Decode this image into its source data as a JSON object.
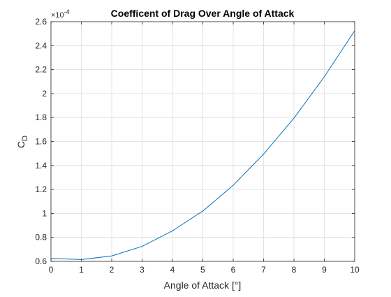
{
  "chart_data": {
    "type": "line",
    "title": "Coefficent of Drag Over Angle of Attack",
    "xlabel": "Angle of Attack [°]",
    "ylabel": {
      "main": "C",
      "sub": "D"
    },
    "xlim": [
      0,
      10
    ],
    "ylim": [
      0.6,
      2.6
    ],
    "y_multiplier": {
      "base": "×10",
      "exponent": "-4"
    },
    "grid": true,
    "x_ticks": [
      0,
      1,
      2,
      3,
      4,
      5,
      6,
      7,
      8,
      9,
      10
    ],
    "y_ticks": [
      0.6,
      0.8,
      1,
      1.2,
      1.4,
      1.6,
      1.8,
      2,
      2.2,
      2.4,
      2.6
    ],
    "x_tick_labels": [
      "0",
      "1",
      "2",
      "3",
      "4",
      "5",
      "6",
      "7",
      "8",
      "9",
      "10"
    ],
    "y_tick_labels": [
      "0.6",
      "0.8",
      "1",
      "1.2",
      "1.4",
      "1.6",
      "1.8",
      "2",
      "2.2",
      "2.4",
      "2.6"
    ],
    "series": [
      {
        "color": "#0072BD",
        "x": [
          0,
          1,
          2,
          3,
          4,
          5,
          6,
          7,
          8,
          9,
          10
        ],
        "y": [
          0.625,
          0.615,
          0.645,
          0.725,
          0.855,
          1.02,
          1.235,
          1.495,
          1.795,
          2.14,
          2.525
        ]
      }
    ]
  }
}
